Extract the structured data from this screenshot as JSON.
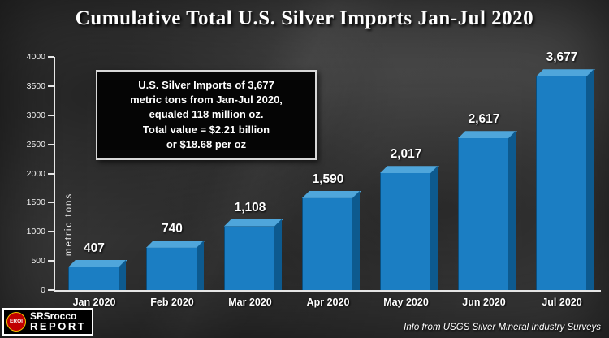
{
  "title": "Cumulative Total U.S. Silver Imports Jan-Jul 2020",
  "chart_data": {
    "type": "bar",
    "title": "Cumulative Total U.S. Silver Imports Jan-Jul 2020",
    "categories": [
      "Jan 2020",
      "Feb 2020",
      "Mar 2020",
      "Apr 2020",
      "May 2020",
      "Jun 2020",
      "Jul 2020"
    ],
    "values": [
      407,
      740,
      1108,
      1590,
      2017,
      2617,
      3677
    ],
    "value_labels": [
      "407",
      "740",
      "1,108",
      "1,590",
      "2,017",
      "2,617",
      "3,677"
    ],
    "xlabel": "",
    "ylabel": "metric tons",
    "ylim": [
      0,
      4000
    ],
    "ytick_step": 500,
    "ytick_labels": [
      "0",
      "500",
      "1000",
      "1500",
      "2000",
      "2500",
      "3000",
      "3500",
      "4000"
    ],
    "grid": false,
    "legend": "none",
    "bar_color": "#1b7ec3",
    "bar_top_color": "#4fa6db",
    "bar_side_color": "#0d5a8f"
  },
  "annotation": {
    "lines": [
      "U.S. Silver Imports of 3,677",
      "metric tons from Jan-Jul 2020,",
      "equaled 118 million oz.",
      "Total value = $2.21 billion",
      "or $18.68 per oz"
    ]
  },
  "footer": {
    "logo_badge": "EROI",
    "logo_line1": "SRSrocco",
    "logo_line2": "REPORT",
    "source": "Info from USGS Silver Mineral Industry Surveys"
  }
}
